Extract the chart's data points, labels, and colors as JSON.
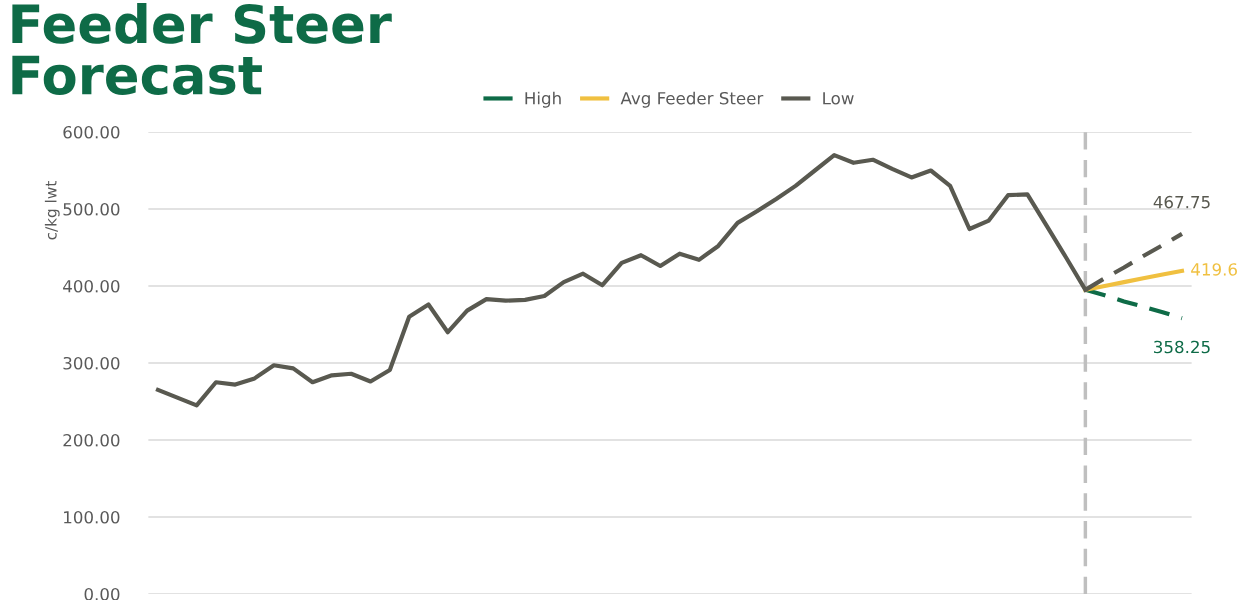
{
  "chart_data": {
    "type": "line",
    "title": "Feeder Steer Forecast",
    "ylabel": "c/kg lwt",
    "categories": [
      null,
      null,
      null,
      null,
      null,
      null,
      null,
      null,
      null,
      null,
      null,
      null,
      null,
      null,
      null,
      null,
      null,
      null,
      null,
      null,
      null,
      null,
      null,
      null,
      null,
      null,
      null,
      null,
      null,
      null,
      null,
      null,
      null,
      null,
      null,
      null,
      null,
      null,
      null,
      null,
      null,
      null,
      null,
      null,
      null,
      null,
      null,
      null,
      null,
      null,
      null,
      null,
      null,
      null
    ],
    "series": [
      {
        "name": "High",
        "color": "#0e6b47",
        "line_style": "dashed",
        "values": [
          null,
          null,
          null,
          null,
          null,
          null,
          null,
          null,
          null,
          null,
          null,
          null,
          null,
          null,
          null,
          null,
          null,
          null,
          null,
          null,
          null,
          null,
          null,
          null,
          null,
          null,
          null,
          null,
          null,
          null,
          null,
          null,
          null,
          null,
          null,
          null,
          null,
          null,
          null,
          null,
          null,
          null,
          null,
          null,
          null,
          null,
          null,
          null,
          395,
          388,
          380,
          373,
          366,
          358.25
        ],
        "value_labels": [
          null,
          null,
          null,
          null,
          null,
          null,
          null,
          null,
          null,
          null,
          null,
          null,
          null,
          null,
          null,
          null,
          null,
          null,
          null,
          null,
          null,
          null,
          null,
          null,
          null,
          null,
          null,
          null,
          null,
          null,
          null,
          null,
          null,
          null,
          null,
          null,
          null,
          null,
          null,
          null,
          null,
          null,
          null,
          null,
          null,
          null,
          null,
          null,
          null,
          null,
          null,
          null,
          null,
          "358.25"
        ]
      },
      {
        "name": "Avg Feeder Steer",
        "color": "#f0c040",
        "line_style": "solid",
        "values": [
          null,
          null,
          null,
          null,
          null,
          null,
          null,
          null,
          null,
          null,
          null,
          null,
          null,
          null,
          null,
          null,
          null,
          null,
          null,
          null,
          null,
          null,
          null,
          null,
          null,
          null,
          null,
          null,
          null,
          null,
          null,
          null,
          null,
          null,
          null,
          null,
          null,
          null,
          null,
          null,
          null,
          null,
          null,
          null,
          null,
          null,
          null,
          null,
          395,
          400,
          405,
          410,
          415,
          419.6
        ],
        "value_labels": [
          null,
          null,
          null,
          null,
          null,
          null,
          null,
          null,
          null,
          null,
          null,
          null,
          null,
          null,
          null,
          null,
          null,
          null,
          null,
          null,
          null,
          null,
          null,
          null,
          null,
          null,
          null,
          null,
          null,
          null,
          null,
          null,
          null,
          null,
          null,
          null,
          null,
          null,
          null,
          null,
          null,
          null,
          null,
          null,
          null,
          null,
          null,
          null,
          null,
          null,
          null,
          null,
          null,
          "419.6"
        ]
      },
      {
        "name": "Low",
        "color": "#595950",
        "line_style": "solid",
        "values": [
          265,
          255,
          245,
          275,
          272,
          280,
          297,
          293,
          275,
          284,
          286,
          276,
          291,
          360,
          376,
          340,
          368,
          383,
          381,
          382,
          387,
          405,
          416,
          401,
          430,
          440,
          426,
          442,
          434,
          452,
          482,
          497,
          513,
          530,
          550,
          570,
          560,
          564,
          552,
          541,
          550,
          530,
          474,
          485,
          518,
          519,
          478,
          437,
          395,
          null,
          null,
          null,
          null,
          null
        ]
      },
      {
        "color": "#595950",
        "line_style": "dashed",
        "values": [
          null,
          null,
          null,
          null,
          null,
          null,
          null,
          null,
          null,
          null,
          null,
          null,
          null,
          null,
          null,
          null,
          null,
          null,
          null,
          null,
          null,
          null,
          null,
          null,
          null,
          null,
          null,
          null,
          null,
          null,
          null,
          null,
          null,
          null,
          null,
          null,
          null,
          null,
          null,
          null,
          null,
          null,
          null,
          null,
          null,
          null,
          null,
          null,
          395,
          410,
          424,
          439,
          453,
          467.75
        ],
        "value_labels": [
          null,
          null,
          null,
          null,
          null,
          null,
          null,
          null,
          null,
          null,
          null,
          null,
          null,
          null,
          null,
          null,
          null,
          null,
          null,
          null,
          null,
          null,
          null,
          null,
          null,
          null,
          null,
          null,
          null,
          null,
          null,
          null,
          null,
          null,
          null,
          null,
          null,
          null,
          null,
          null,
          null,
          null,
          null,
          null,
          null,
          null,
          null,
          null,
          null,
          null,
          null,
          null,
          null,
          "467.75"
        ]
      }
    ],
    "ylim": [
      0,
      600
    ],
    "yticks": [
      {
        "value": 0,
        "label": "0.00"
      },
      {
        "value": 100,
        "label": "100.00"
      },
      {
        "value": 200,
        "label": "200.00"
      },
      {
        "value": 300,
        "label": "300.00"
      },
      {
        "value": 400,
        "label": "400.00"
      },
      {
        "value": 500,
        "label": "500.00"
      },
      {
        "value": 600,
        "label": "600.00"
      }
    ],
    "grid": "y",
    "legend": "top",
    "tick_labels": "y",
    "marker": "none"
  }
}
